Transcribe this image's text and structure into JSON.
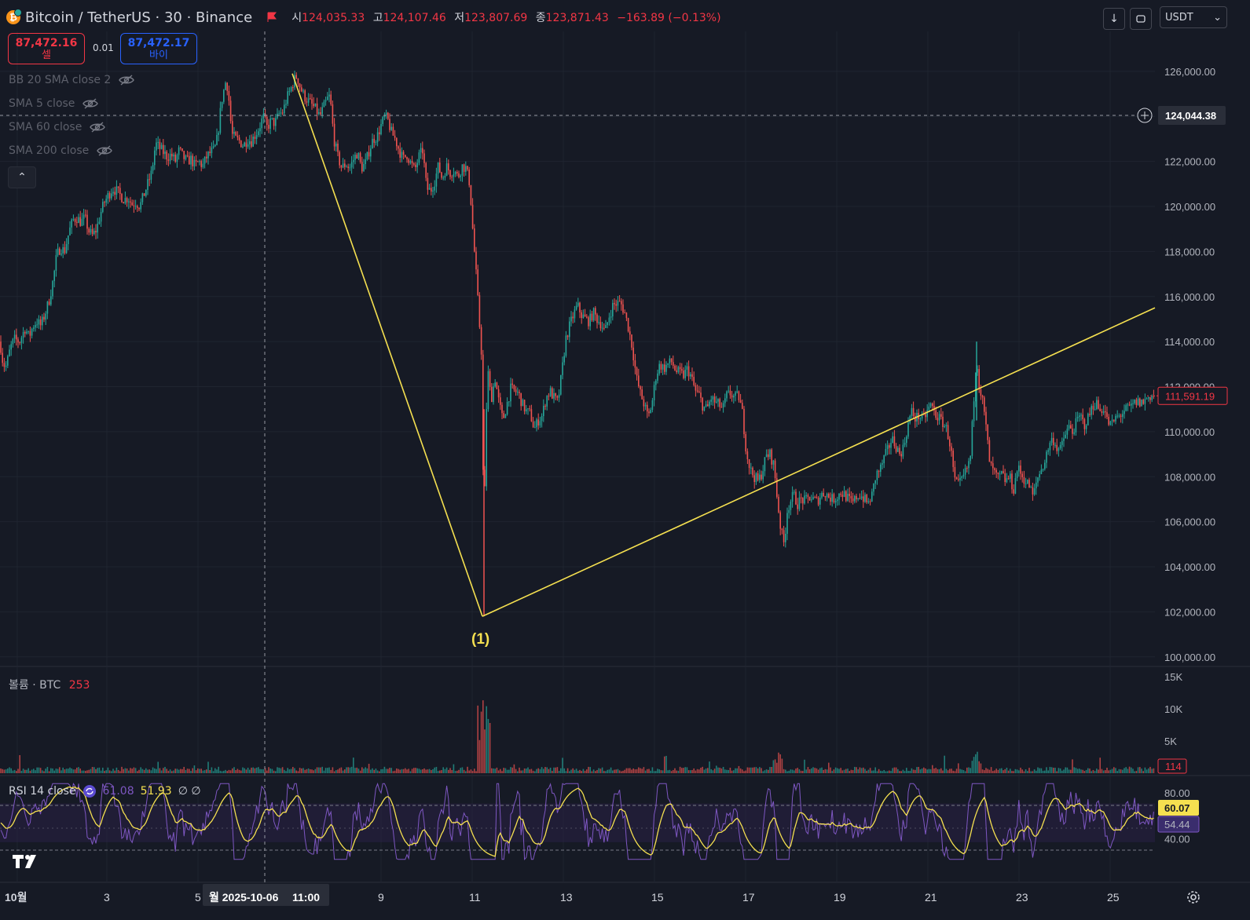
{
  "header": {
    "symbol": "Bitcoin / TetherUS · 30 · Binance",
    "open_label": "시",
    "open": "124,035.33",
    "high_label": "고",
    "high": "124,107.46",
    "low_label": "저",
    "low": "123,807.69",
    "close_label": "종",
    "close": "123,871.43",
    "change": "−163.89 (−0.13%)"
  },
  "trade": {
    "sell_price": "87,472.16",
    "sell_label": "셀",
    "spread": "0.01",
    "buy_price": "87,472.17",
    "buy_label": "바이"
  },
  "indicators": [
    {
      "label": "BB 20 SMA close 2"
    },
    {
      "label": "SMA 5 close"
    },
    {
      "label": "SMA 60 close"
    },
    {
      "label": "SMA 200 close"
    }
  ],
  "currency": "USDT",
  "price_axis": {
    "ticks": [
      "126,000.00",
      "124,000.00",
      "122,000.00",
      "120,000.00",
      "118,000.00",
      "116,000.00",
      "114,000.00",
      "112,000.00",
      "110,000.00",
      "108,000.00",
      "106,000.00",
      "104,000.00",
      "102,000.00",
      "100,000.00"
    ],
    "tick_values": [
      126000,
      124000,
      122000,
      120000,
      118000,
      116000,
      114000,
      112000,
      110000,
      108000,
      106000,
      104000,
      102000,
      100000
    ],
    "crosshair_price": "124,044.38",
    "crosshair_value": 124044.38,
    "last_price": "111,591.19",
    "last_value": 111591.19
  },
  "annotation": "(1)",
  "volume": {
    "label": "볼륨 · BTC",
    "value": "253",
    "ticks": [
      "15K",
      "10K",
      "5K"
    ],
    "tick_values": [
      15000,
      10000,
      5000
    ],
    "last": "114"
  },
  "rsi": {
    "label": "RSI 14 close",
    "v1": "61.08",
    "v2": "51.93",
    "v3": "∅ ∅",
    "ticks": [
      "80.00",
      "40.00"
    ],
    "tick_values": [
      80,
      40
    ],
    "rsi_last": "60.07",
    "ma_last": "54.44"
  },
  "time_axis": {
    "labels": [
      "10월",
      "3",
      "5",
      "9",
      "11",
      "13",
      "15",
      "17",
      "19",
      "21",
      "23",
      "25"
    ],
    "crosshair_label": "월 2025-10-06",
    "crosshair_time": "11:00"
  },
  "colors": {
    "bg": "#161a25",
    "up": "#26a69a",
    "down": "#ef5350",
    "trendline": "#f5e050",
    "rsi": "#7e57c2",
    "rsi_ma": "#f5e050"
  },
  "chart_data": {
    "type": "candlestick",
    "ylim": [
      100000,
      126500
    ],
    "price_path": [
      [
        0,
        114000
      ],
      [
        4,
        113000
      ],
      [
        8,
        112900
      ],
      [
        13,
        113700
      ],
      [
        18,
        114100
      ],
      [
        25,
        114000
      ],
      [
        32,
        114600
      ],
      [
        37,
        114200
      ],
      [
        42,
        114700
      ],
      [
        47,
        114900
      ],
      [
        52,
        114700
      ],
      [
        58,
        115300
      ],
      [
        63,
        115900
      ],
      [
        68,
        116800
      ],
      [
        72,
        117800
      ],
      [
        77,
        118200
      ],
      [
        82,
        118000
      ],
      [
        88,
        118900
      ],
      [
        93,
        119400
      ],
      [
        98,
        119500
      ],
      [
        103,
        119300
      ],
      [
        108,
        119500
      ],
      [
        113,
        118900
      ],
      [
        118,
        118700
      ],
      [
        123,
        119000
      ],
      [
        128,
        119700
      ],
      [
        133,
        120200
      ],
      [
        138,
        120500
      ],
      [
        143,
        120800
      ],
      [
        148,
        120700
      ],
      [
        153,
        120500
      ],
      [
        158,
        120300
      ],
      [
        163,
        120400
      ],
      [
        168,
        120100
      ],
      [
        173,
        120200
      ],
      [
        178,
        120000
      ],
      [
        183,
        120500
      ],
      [
        188,
        121000
      ],
      [
        193,
        121500
      ],
      [
        198,
        122800
      ],
      [
        203,
        122600
      ],
      [
        208,
        122400
      ],
      [
        213,
        122200
      ],
      [
        218,
        122300
      ],
      [
        223,
        122000
      ],
      [
        228,
        122500
      ],
      [
        233,
        122200
      ],
      [
        238,
        122000
      ],
      [
        243,
        122100
      ],
      [
        248,
        121800
      ],
      [
        253,
        122000
      ],
      [
        258,
        121800
      ],
      [
        263,
        122200
      ],
      [
        268,
        122400
      ],
      [
        273,
        122500
      ],
      [
        277,
        123100
      ],
      [
        282,
        124700
      ],
      [
        287,
        125500
      ],
      [
        290,
        125300
      ],
      [
        295,
        123200
      ],
      [
        300,
        123000
      ],
      [
        305,
        122900
      ],
      [
        310,
        122700
      ],
      [
        315,
        123000
      ],
      [
        320,
        122900
      ],
      [
        325,
        123200
      ],
      [
        330,
        123500
      ],
      [
        335,
        124000
      ],
      [
        340,
        123500
      ],
      [
        345,
        123800
      ],
      [
        350,
        123700
      ],
      [
        355,
        124100
      ],
      [
        360,
        124200
      ],
      [
        365,
        124800
      ],
      [
        370,
        125200
      ],
      [
        374,
        125600
      ],
      [
        378,
        125800
      ],
      [
        382,
        125300
      ],
      [
        387,
        124900
      ],
      [
        392,
        124700
      ],
      [
        397,
        124500
      ],
      [
        402,
        124300
      ],
      [
        407,
        124000
      ],
      [
        412,
        124400
      ],
      [
        417,
        124800
      ],
      [
        420,
        124900
      ],
      [
        425,
        123000
      ],
      [
        430,
        122200
      ],
      [
        435,
        121700
      ],
      [
        440,
        121900
      ],
      [
        445,
        121700
      ],
      [
        450,
        122100
      ],
      [
        455,
        122400
      ],
      [
        460,
        121700
      ],
      [
        465,
        121900
      ],
      [
        470,
        122500
      ],
      [
        475,
        123000
      ],
      [
        480,
        123100
      ],
      [
        485,
        123600
      ],
      [
        490,
        124000
      ],
      [
        494,
        123800
      ],
      [
        498,
        123300
      ],
      [
        503,
        123000
      ],
      [
        508,
        122500
      ],
      [
        513,
        122100
      ],
      [
        518,
        122300
      ],
      [
        523,
        121900
      ],
      [
        528,
        121600
      ],
      [
        533,
        122200
      ],
      [
        538,
        122500
      ],
      [
        543,
        120800
      ],
      [
        548,
        120700
      ],
      [
        553,
        121100
      ],
      [
        558,
        121800
      ],
      [
        563,
        121200
      ],
      [
        568,
        121800
      ],
      [
        573,
        121500
      ],
      [
        578,
        121600
      ],
      [
        583,
        121300
      ],
      [
        588,
        121800
      ],
      [
        593,
        121700
      ],
      [
        598,
        121000
      ],
      [
        602,
        118800
      ],
      [
        606,
        117000
      ],
      [
        610,
        114900
      ],
      [
        613,
        113400
      ],
      [
        616,
        104800
      ],
      [
        618,
        110000
      ],
      [
        621,
        112700
      ],
      [
        625,
        111400
      ],
      [
        630,
        112400
      ],
      [
        635,
        111300
      ],
      [
        640,
        110500
      ],
      [
        645,
        111200
      ],
      [
        650,
        111900
      ],
      [
        655,
        111800
      ],
      [
        660,
        111700
      ],
      [
        665,
        111200
      ],
      [
        670,
        110900
      ],
      [
        675,
        110800
      ],
      [
        680,
        110100
      ],
      [
        685,
        110500
      ],
      [
        690,
        110700
      ],
      [
        695,
        111500
      ],
      [
        700,
        111800
      ],
      [
        705,
        111500
      ],
      [
        710,
        111300
      ],
      [
        715,
        112600
      ],
      [
        720,
        114100
      ],
      [
        725,
        114700
      ],
      [
        730,
        115200
      ],
      [
        735,
        115600
      ],
      [
        740,
        115200
      ],
      [
        745,
        115000
      ],
      [
        750,
        114900
      ],
      [
        755,
        115300
      ],
      [
        760,
        115000
      ],
      [
        765,
        114800
      ],
      [
        770,
        114400
      ],
      [
        775,
        115100
      ],
      [
        780,
        115600
      ],
      [
        785,
        115700
      ],
      [
        790,
        115700
      ],
      [
        795,
        115300
      ],
      [
        800,
        114600
      ],
      [
        805,
        113700
      ],
      [
        810,
        112400
      ],
      [
        815,
        111700
      ],
      [
        820,
        111200
      ],
      [
        825,
        110600
      ],
      [
        830,
        111300
      ],
      [
        835,
        112500
      ],
      [
        840,
        113000
      ],
      [
        845,
        112800
      ],
      [
        850,
        113000
      ],
      [
        855,
        113100
      ],
      [
        860,
        112700
      ],
      [
        865,
        112600
      ],
      [
        870,
        112500
      ],
      [
        875,
        112800
      ],
      [
        880,
        112400
      ],
      [
        885,
        111800
      ],
      [
        890,
        111600
      ],
      [
        895,
        111100
      ],
      [
        900,
        111000
      ],
      [
        905,
        111500
      ],
      [
        910,
        111300
      ],
      [
        915,
        111200
      ],
      [
        920,
        111000
      ],
      [
        925,
        111600
      ],
      [
        930,
        111700
      ],
      [
        935,
        111500
      ],
      [
        940,
        111600
      ],
      [
        945,
        110800
      ],
      [
        950,
        109100
      ],
      [
        955,
        108300
      ],
      [
        960,
        108000
      ],
      [
        965,
        107800
      ],
      [
        970,
        108200
      ],
      [
        975,
        108900
      ],
      [
        980,
        109000
      ],
      [
        985,
        108500
      ],
      [
        990,
        106800
      ],
      [
        994,
        105600
      ],
      [
        998,
        105000
      ],
      [
        1002,
        106500
      ],
      [
        1006,
        106900
      ],
      [
        1010,
        107200
      ],
      [
        1015,
        106800
      ],
      [
        1020,
        107000
      ],
      [
        1025,
        106900
      ],
      [
        1030,
        107100
      ],
      [
        1035,
        107000
      ],
      [
        1040,
        106900
      ],
      [
        1045,
        107200
      ],
      [
        1050,
        107300
      ],
      [
        1055,
        107100
      ],
      [
        1060,
        107000
      ],
      [
        1065,
        107100
      ],
      [
        1070,
        107300
      ],
      [
        1075,
        107200
      ],
      [
        1080,
        107000
      ],
      [
        1085,
        106800
      ],
      [
        1090,
        107100
      ],
      [
        1095,
        107200
      ],
      [
        1100,
        107000
      ],
      [
        1105,
        106800
      ],
      [
        1110,
        107200
      ],
      [
        1115,
        108100
      ],
      [
        1120,
        108300
      ],
      [
        1125,
        108800
      ],
      [
        1130,
        109200
      ],
      [
        1135,
        109700
      ],
      [
        1140,
        109400
      ],
      [
        1145,
        109000
      ],
      [
        1150,
        109300
      ],
      [
        1155,
        110200
      ],
      [
        1160,
        110900
      ],
      [
        1165,
        110600
      ],
      [
        1170,
        110700
      ],
      [
        1175,
        110500
      ],
      [
        1180,
        110900
      ],
      [
        1185,
        111200
      ],
      [
        1190,
        110800
      ],
      [
        1195,
        110600
      ],
      [
        1200,
        110400
      ],
      [
        1205,
        110100
      ],
      [
        1210,
        109300
      ],
      [
        1215,
        107800
      ],
      [
        1220,
        107600
      ],
      [
        1225,
        107900
      ],
      [
        1230,
        108300
      ],
      [
        1235,
        108800
      ],
      [
        1240,
        111800
      ],
      [
        1243,
        113500
      ],
      [
        1246,
        112100
      ],
      [
        1250,
        111500
      ],
      [
        1255,
        110200
      ],
      [
        1260,
        108500
      ],
      [
        1265,
        108200
      ],
      [
        1270,
        107900
      ],
      [
        1275,
        108100
      ],
      [
        1280,
        107800
      ],
      [
        1285,
        108000
      ],
      [
        1290,
        107400
      ],
      [
        1295,
        108400
      ],
      [
        1300,
        108100
      ],
      [
        1305,
        107800
      ],
      [
        1310,
        107600
      ],
      [
        1315,
        107100
      ],
      [
        1320,
        107900
      ],
      [
        1325,
        108300
      ],
      [
        1330,
        108700
      ],
      [
        1335,
        109400
      ],
      [
        1340,
        109700
      ],
      [
        1345,
        109300
      ],
      [
        1350,
        109200
      ],
      [
        1355,
        109800
      ],
      [
        1360,
        110200
      ],
      [
        1365,
        110000
      ],
      [
        1370,
        110400
      ],
      [
        1375,
        110700
      ],
      [
        1380,
        110300
      ],
      [
        1385,
        110600
      ],
      [
        1390,
        111100
      ],
      [
        1395,
        111300
      ],
      [
        1400,
        110900
      ],
      [
        1405,
        111100
      ],
      [
        1410,
        110400
      ],
      [
        1415,
        110300
      ],
      [
        1420,
        110600
      ],
      [
        1425,
        110700
      ],
      [
        1430,
        110900
      ],
      [
        1435,
        111000
      ],
      [
        1440,
        111100
      ],
      [
        1445,
        111300
      ],
      [
        1450,
        111300
      ],
      [
        1455,
        111300
      ],
      [
        1460,
        111500
      ],
      [
        1465,
        111600
      ],
      [
        1470,
        111591
      ]
    ],
    "trendlines": [
      {
        "from": {
          "x": 372,
          "price": 125900
        },
        "to": {
          "x": 614,
          "price": 101800
        }
      },
      {
        "from": {
          "x": 614,
          "price": 101800
        },
        "to": {
          "x": 1470,
          "price": 115500
        }
      }
    ]
  }
}
